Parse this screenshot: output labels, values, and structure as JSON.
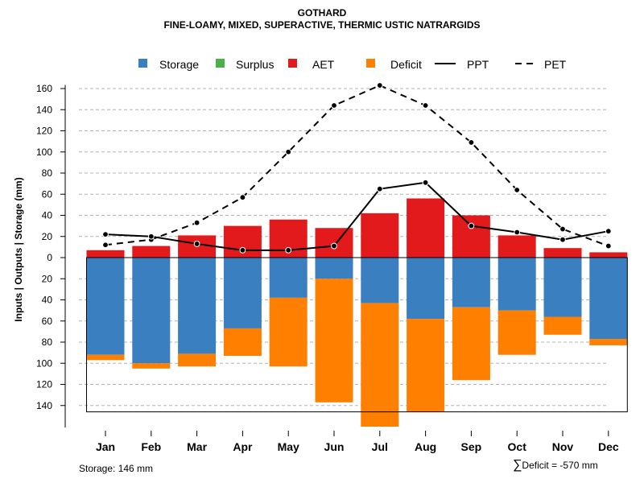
{
  "chart_data": {
    "type": "bar",
    "title": "GOTHARD",
    "subtitle": "FINE-LOAMY, MIXED, SUPERACTIVE, THERMIC USTIC NATRARGIDS",
    "ylabel": "Inputs | Outputs | Storage     (mm)",
    "xlabel": "",
    "categories": [
      "Jan",
      "Feb",
      "Mar",
      "Apr",
      "May",
      "Jun",
      "Jul",
      "Aug",
      "Sep",
      "Oct",
      "Nov",
      "Dec"
    ],
    "ylim": [
      -160,
      165
    ],
    "yticks": [
      160,
      140,
      120,
      100,
      80,
      60,
      40,
      20,
      0,
      -20,
      -40,
      -60,
      -80,
      -100,
      -120,
      -140
    ],
    "ytick_labels": [
      "160",
      "140",
      "120",
      "100",
      "80",
      "60",
      "40",
      "20",
      "0",
      "20",
      "40",
      "60",
      "80",
      "100",
      "120",
      "140"
    ],
    "grid": true,
    "legend_position": "top",
    "legend": [
      {
        "name": "Storage",
        "kind": "box",
        "color": "#3a7fbf"
      },
      {
        "name": "Surplus",
        "kind": "box",
        "color": "#4daf4a"
      },
      {
        "name": "AET",
        "kind": "box",
        "color": "#e31a1c"
      },
      {
        "name": "Deficit",
        "kind": "box",
        "color": "#ff7f00"
      },
      {
        "name": "PPT",
        "kind": "line",
        "color": "#000000"
      },
      {
        "name": "PET",
        "kind": "dash",
        "color": "#000000"
      }
    ],
    "series": [
      {
        "name": "AET",
        "color": "#e31a1c",
        "values": [
          7,
          11,
          21,
          30,
          36,
          28,
          42,
          56,
          40,
          21,
          9,
          5
        ]
      },
      {
        "name": "Storage",
        "color": "#3a7fbf",
        "values": [
          -92,
          -100,
          -91,
          -67,
          -38,
          -20,
          -43,
          -58,
          -47,
          -50,
          -56,
          -77
        ]
      },
      {
        "name": "Deficit",
        "color": "#ff7f00",
        "values": [
          -5,
          -5,
          -12,
          -26,
          -65,
          -117,
          -117,
          -88,
          -69,
          -42,
          -17,
          -6
        ]
      },
      {
        "name": "PPT",
        "color": "#000000",
        "values": [
          22,
          20,
          13,
          7,
          7,
          11,
          65,
          71,
          30,
          24,
          17,
          25
        ]
      },
      {
        "name": "PET",
        "color": "#000000",
        "values": [
          12,
          17,
          33,
          57,
          100,
          144,
          163,
          144,
          109,
          64,
          27,
          11
        ]
      }
    ],
    "storage_capacity": 146,
    "storage_note": "Storage: 146 mm",
    "deficit_sigma": "∑",
    "deficit_note": "Deficit = -570 mm"
  }
}
